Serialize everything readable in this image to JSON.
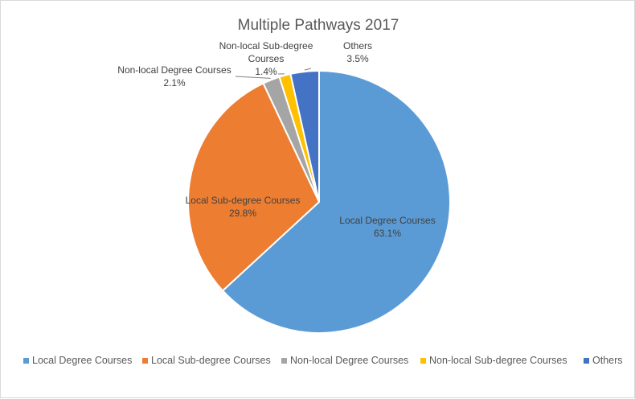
{
  "chart_data": {
    "type": "pie",
    "title": "Multiple Pathways 2017",
    "categories": [
      "Local Degree Courses",
      "Local Sub-degree Courses",
      "Non-local Degree Courses",
      "Non-local Sub-degree Courses",
      "Others"
    ],
    "values": [
      63.1,
      29.8,
      2.1,
      1.4,
      3.5
    ],
    "data_labels": [
      "63.1%",
      "29.8%",
      "2.1%",
      "1.4%",
      "3.5%"
    ],
    "slice_label_lines": [
      [
        "Local Degree Courses",
        "63.1%"
      ],
      [
        "Local Sub-degree Courses",
        "29.8%"
      ],
      [
        "Non-local Degree Courses",
        "2.1%"
      ],
      [
        "Non-local Sub-degree",
        "Courses",
        "1.4%"
      ],
      [
        "Others",
        "3.5%"
      ]
    ],
    "colors": [
      "#5b9bd5",
      "#ed7d31",
      "#a5a5a5",
      "#ffc000",
      "#4472c4"
    ],
    "legend_position": "bottom"
  }
}
